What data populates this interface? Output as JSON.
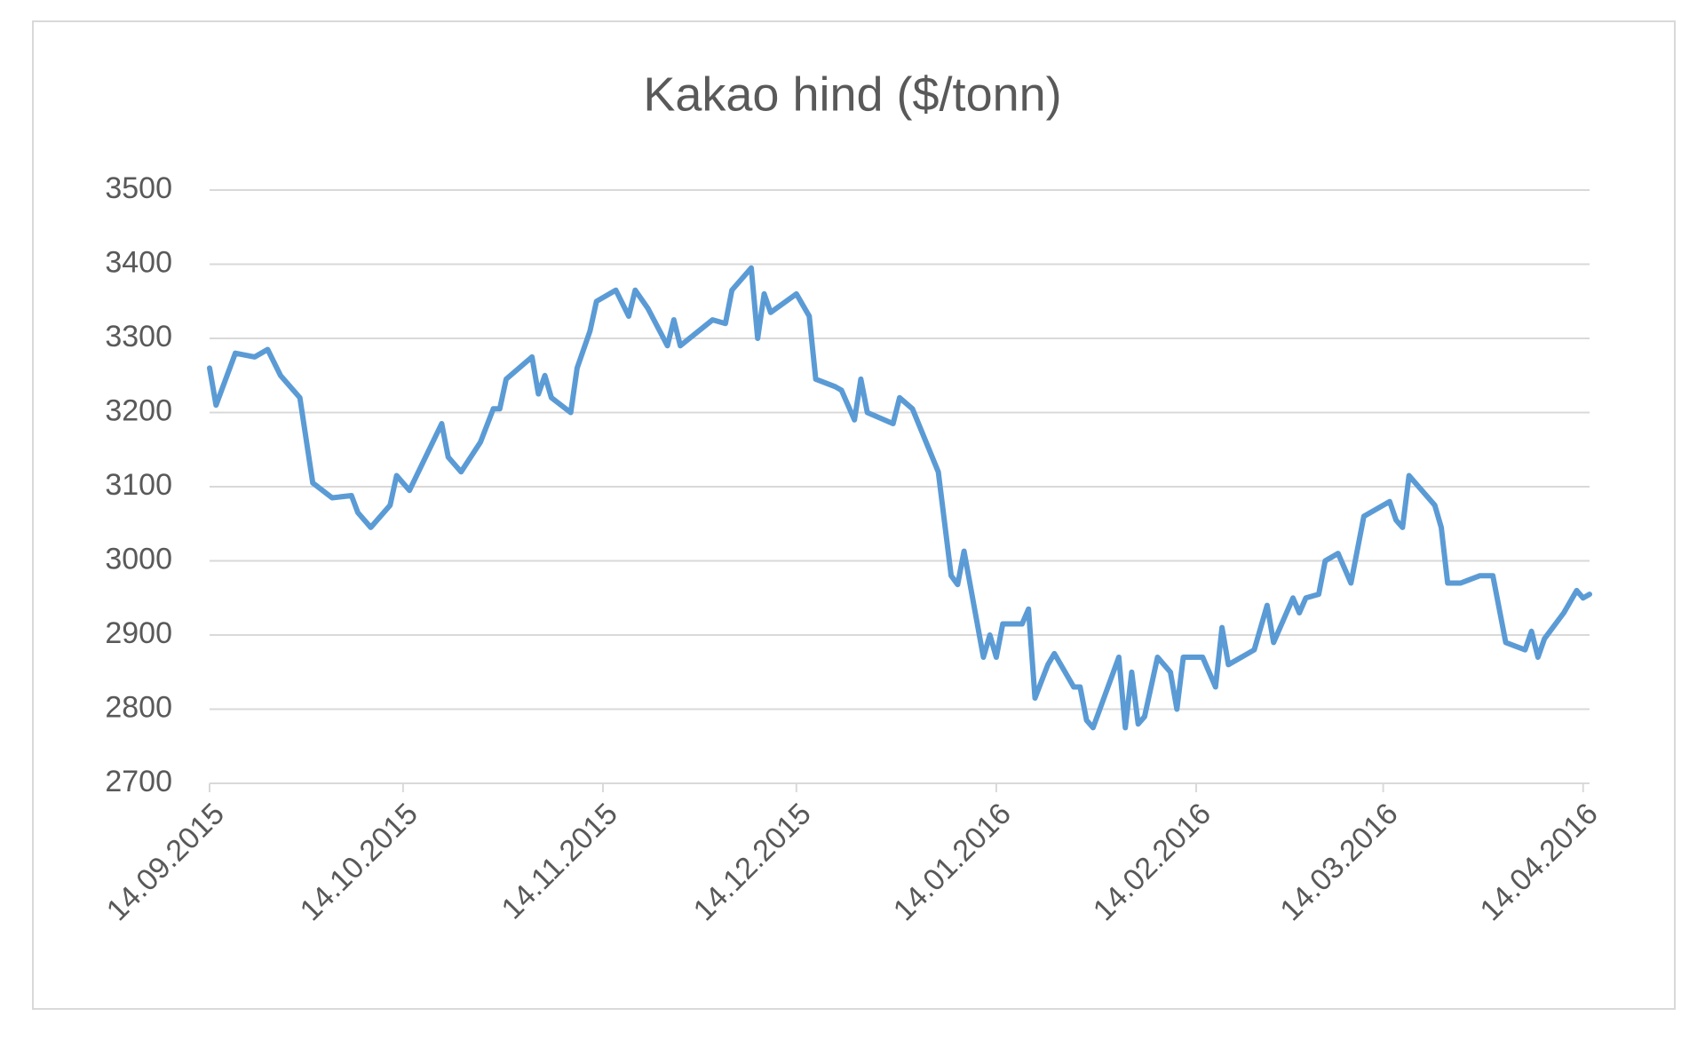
{
  "chart_data": {
    "type": "line",
    "title": "Kakao hind ($/tonn)",
    "color": "#5b9bd5",
    "grid": true,
    "xlim": [
      "2015-09-14",
      "2016-04-15"
    ],
    "xticks": [
      {
        "value": "2015-09-14",
        "label": "14.09.2015"
      },
      {
        "value": "2015-10-14",
        "label": "14.10.2015"
      },
      {
        "value": "2015-11-14",
        "label": "14.11.2015"
      },
      {
        "value": "2015-12-14",
        "label": "14.12.2015"
      },
      {
        "value": "2016-01-14",
        "label": "14.01.2016"
      },
      {
        "value": "2016-02-14",
        "label": "14.02.2016"
      },
      {
        "value": "2016-03-14",
        "label": "14.03.2016"
      },
      {
        "value": "2016-04-14",
        "label": "14.04.2016"
      }
    ],
    "ylim": [
      2700,
      3500
    ],
    "yticks": [
      2700,
      2800,
      2900,
      3000,
      3100,
      3200,
      3300,
      3400,
      3500
    ],
    "x": [
      "2015-09-14",
      "2015-09-15",
      "2015-09-18",
      "2015-09-21",
      "2015-09-23",
      "2015-09-25",
      "2015-09-28",
      "2015-09-30",
      "2015-10-03",
      "2015-10-06",
      "2015-10-07",
      "2015-10-09",
      "2015-10-12",
      "2015-10-13",
      "2015-10-15",
      "2015-10-20",
      "2015-10-21",
      "2015-10-23",
      "2015-10-26",
      "2015-10-28",
      "2015-10-29",
      "2015-10-30",
      "2015-11-03",
      "2015-11-04",
      "2015-11-05",
      "2015-11-06",
      "2015-11-09",
      "2015-11-10",
      "2015-11-12",
      "2015-11-13",
      "2015-11-16",
      "2015-11-18",
      "2015-11-19",
      "2015-11-21",
      "2015-11-24",
      "2015-11-25",
      "2015-11-26",
      "2015-12-01",
      "2015-12-03",
      "2015-12-04",
      "2015-12-07",
      "2015-12-08",
      "2015-12-09",
      "2015-12-10",
      "2015-12-14",
      "2015-12-16",
      "2015-12-17",
      "2015-12-20",
      "2015-12-21",
      "2015-12-23",
      "2015-12-24",
      "2015-12-25",
      "2015-12-29",
      "2015-12-30",
      "2016-01-01",
      "2016-01-05",
      "2016-01-07",
      "2016-01-08",
      "2016-01-09",
      "2016-01-12",
      "2016-01-13",
      "2016-01-14",
      "2016-01-15",
      "2016-01-18",
      "2016-01-19",
      "2016-01-20",
      "2016-01-22",
      "2016-01-23",
      "2016-01-25",
      "2016-01-26",
      "2016-01-27",
      "2016-01-28",
      "2016-01-29",
      "2016-02-02",
      "2016-02-03",
      "2016-02-04",
      "2016-02-05",
      "2016-02-06",
      "2016-02-08",
      "2016-02-10",
      "2016-02-11",
      "2016-02-12",
      "2016-02-15",
      "2016-02-17",
      "2016-02-18",
      "2016-02-19",
      "2016-02-23",
      "2016-02-25",
      "2016-02-26",
      "2016-02-29",
      "2016-03-01",
      "2016-03-02",
      "2016-03-04",
      "2016-03-05",
      "2016-03-07",
      "2016-03-09",
      "2016-03-11",
      "2016-03-15",
      "2016-03-16",
      "2016-03-17",
      "2016-03-18",
      "2016-03-19",
      "2016-03-22",
      "2016-03-23",
      "2016-03-24",
      "2016-03-26",
      "2016-03-29",
      "2016-03-31",
      "2016-04-02",
      "2016-04-05",
      "2016-04-06",
      "2016-04-07",
      "2016-04-08",
      "2016-04-11",
      "2016-04-13",
      "2016-04-14",
      "2016-04-15"
    ],
    "values": [
      3260,
      3210,
      3280,
      3275,
      3285,
      3250,
      3220,
      3105,
      3085,
      3088,
      3065,
      3045,
      3075,
      3115,
      3095,
      3185,
      3140,
      3120,
      3160,
      3205,
      3205,
      3245,
      3275,
      3225,
      3250,
      3220,
      3200,
      3260,
      3310,
      3350,
      3365,
      3330,
      3365,
      3340,
      3290,
      3325,
      3290,
      3325,
      3320,
      3365,
      3395,
      3300,
      3360,
      3335,
      3360,
      3330,
      3245,
      3235,
      3230,
      3190,
      3245,
      3200,
      3185,
      3220,
      3205,
      3120,
      2980,
      2968,
      3013,
      2870,
      2900,
      2870,
      2915,
      2915,
      2935,
      2815,
      2860,
      2875,
      2845,
      2830,
      2830,
      2785,
      2775,
      2870,
      2775,
      2850,
      2780,
      2790,
      2870,
      2850,
      2800,
      2870,
      2870,
      2830,
      2910,
      2860,
      2880,
      2940,
      2890,
      2950,
      2930,
      2950,
      2955,
      3000,
      3010,
      2970,
      3060,
      3080,
      3055,
      3045,
      3115,
      3105,
      3075,
      3045,
      2970,
      2970,
      2980,
      2980,
      2890,
      2880,
      2905,
      2870,
      2895,
      2930,
      2960,
      2950,
      2955
    ]
  }
}
